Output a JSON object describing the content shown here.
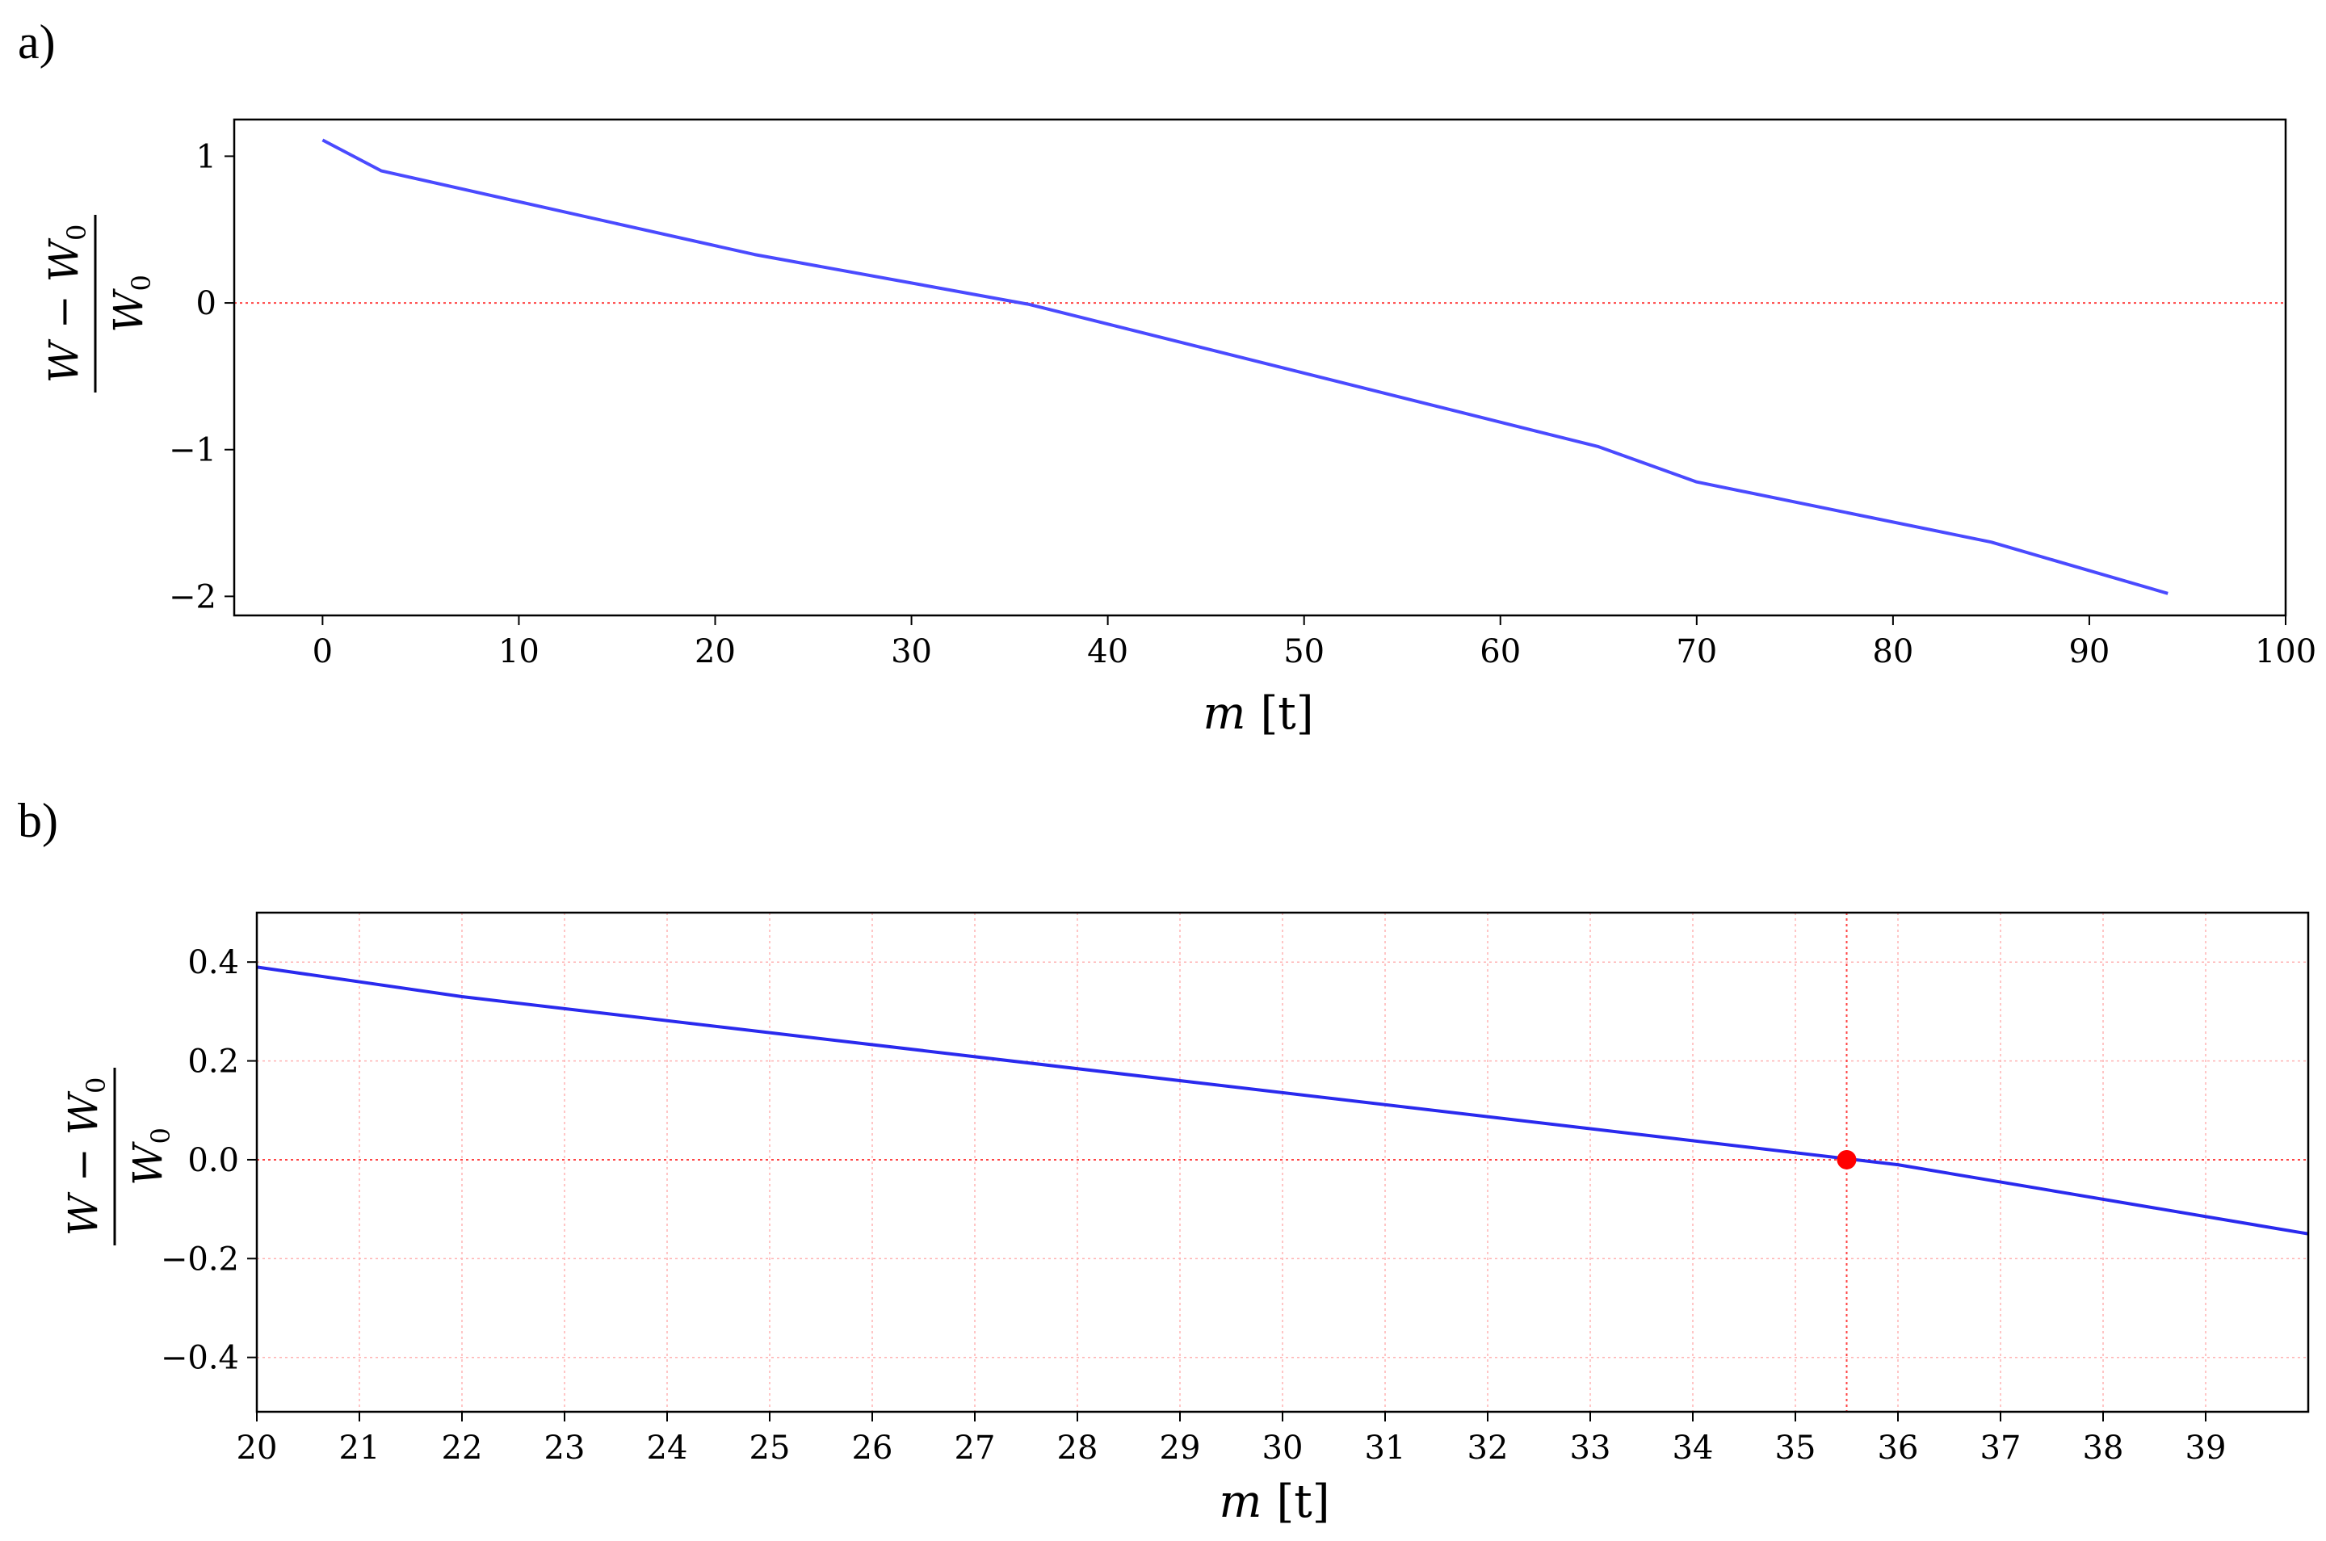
{
  "chart_data": [
    {
      "panel_label": "a)",
      "type": "line",
      "xlabel": {
        "var": "m",
        "unit": "[t]"
      },
      "ylabel": {
        "numerator": "W − W",
        "numerator_sub": "0",
        "denominator": "W",
        "denominator_sub": "0"
      },
      "xlim": [
        -4.5,
        100
      ],
      "ylim": [
        -2.13,
        1.25
      ],
      "xticks": [
        0,
        10,
        20,
        30,
        40,
        50,
        60,
        70,
        80,
        90,
        100
      ],
      "xtick_labels": [
        "0",
        "10",
        "20",
        "30",
        "40",
        "50",
        "60",
        "70",
        "80",
        "90",
        "100"
      ],
      "yticks": [
        1,
        0,
        -1,
        -2
      ],
      "ytick_labels": [
        "1",
        "0",
        "−1",
        "−2"
      ],
      "grid": false,
      "reference_lines": [
        {
          "axis": "y",
          "value": 0,
          "color": "#ff4444",
          "style": "dotted"
        }
      ],
      "series": [
        {
          "color": "#4a4aff",
          "x": [
            0,
            3,
            22,
            36,
            65,
            70,
            85,
            94
          ],
          "y": [
            1.11,
            0.9,
            0.33,
            -0.01,
            -0.98,
            -1.22,
            -1.63,
            -1.98
          ]
        }
      ]
    },
    {
      "panel_label": "b)",
      "type": "line",
      "xlabel": {
        "var": "m",
        "unit": "[t]"
      },
      "ylabel": {
        "numerator": "W − W",
        "numerator_sub": "0",
        "denominator": "W",
        "denominator_sub": "0"
      },
      "xlim": [
        20,
        40
      ],
      "ylim": [
        -0.51,
        0.5
      ],
      "xticks": [
        20,
        21,
        22,
        23,
        24,
        25,
        26,
        27,
        28,
        29,
        30,
        31,
        32,
        33,
        34,
        35,
        36,
        37,
        38,
        39
      ],
      "xtick_labels": [
        "20",
        "21",
        "22",
        "23",
        "24",
        "25",
        "26",
        "27",
        "28",
        "29",
        "30",
        "31",
        "32",
        "33",
        "34",
        "35",
        "36",
        "37",
        "38",
        "39"
      ],
      "yticks": [
        0.4,
        0.2,
        0.0,
        -0.2,
        -0.4
      ],
      "ytick_labels": [
        "0.4",
        "0.2",
        "0.0",
        "−0.2",
        "−0.4"
      ],
      "grid": true,
      "reference_lines": [
        {
          "axis": "y",
          "value": 0,
          "color": "#ff4444",
          "style": "dotted"
        },
        {
          "axis": "x",
          "value": 35.5,
          "color": "#ff4444",
          "style": "dotted"
        }
      ],
      "series": [
        {
          "color": "#2a2aee",
          "x": [
            20,
            22,
            36,
            40
          ],
          "y": [
            0.39,
            0.33,
            -0.01,
            -0.15
          ]
        }
      ],
      "markers": [
        {
          "x": 35.5,
          "y": 0.0,
          "color": "#ff0000"
        }
      ]
    }
  ]
}
